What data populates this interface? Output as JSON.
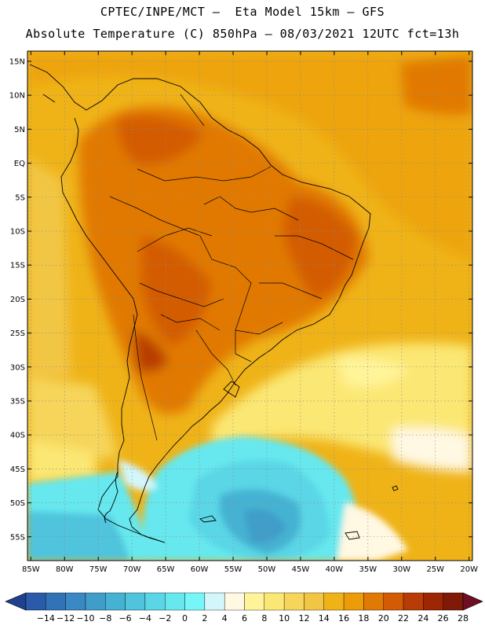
{
  "title": {
    "line1": "CPTEC/INPE/MCT –  Eta Model 15km – GFS",
    "line2": "Absolute Temperature (C) 850hPa – 08/03/2021 12UTC fct=13h"
  },
  "map": {
    "lon_range": [
      -85.5,
      -19.5
    ],
    "lat_range": [
      -58.5,
      16.5
    ],
    "lat_ticks": [
      {
        "value": 15,
        "label": "15N"
      },
      {
        "value": 10,
        "label": "10N"
      },
      {
        "value": 5,
        "label": "5N"
      },
      {
        "value": 0,
        "label": "EQ"
      },
      {
        "value": -5,
        "label": "5S"
      },
      {
        "value": -10,
        "label": "10S"
      },
      {
        "value": -15,
        "label": "15S"
      },
      {
        "value": -20,
        "label": "20S"
      },
      {
        "value": -25,
        "label": "25S"
      },
      {
        "value": -30,
        "label": "30S"
      },
      {
        "value": -35,
        "label": "35S"
      },
      {
        "value": -40,
        "label": "40S"
      },
      {
        "value": -45,
        "label": "45S"
      },
      {
        "value": -50,
        "label": "50S"
      },
      {
        "value": -55,
        "label": "55S"
      }
    ],
    "lon_ticks": [
      {
        "value": -85,
        "label": "85W"
      },
      {
        "value": -80,
        "label": "80W"
      },
      {
        "value": -75,
        "label": "75W"
      },
      {
        "value": -70,
        "label": "70W"
      },
      {
        "value": -65,
        "label": "65W"
      },
      {
        "value": -60,
        "label": "60W"
      },
      {
        "value": -55,
        "label": "55W"
      },
      {
        "value": -50,
        "label": "50W"
      },
      {
        "value": -45,
        "label": "45W"
      },
      {
        "value": -40,
        "label": "40W"
      },
      {
        "value": -35,
        "label": "35W"
      },
      {
        "value": -30,
        "label": "30W"
      },
      {
        "value": -25,
        "label": "25W"
      },
      {
        "value": -20,
        "label": "20W"
      }
    ],
    "grid": "dotted"
  },
  "colorbar": {
    "labels": [
      "-14",
      "-12",
      "-10",
      "-8",
      "-6",
      "-4",
      "-2",
      "0",
      "2",
      "4",
      "6",
      "8",
      "10",
      "12",
      "14",
      "16",
      "18",
      "20",
      "22",
      "24",
      "26",
      "28"
    ],
    "colors": [
      "#1f3f8f",
      "#2b5aa8",
      "#3273b8",
      "#3a88c4",
      "#3f9ec9",
      "#45b2d3",
      "#4fc4dc",
      "#5ad6e6",
      "#66e8ee",
      "#76f6f6",
      "#d3f6fb",
      "#fff8e2",
      "#fff49a",
      "#fbe773",
      "#f6d55a",
      "#f2c645",
      "#efb318",
      "#eb9c08",
      "#e17905",
      "#d35b04",
      "#b83c06",
      "#9d2605",
      "#7f1a08",
      "#6d0f22"
    ]
  }
}
